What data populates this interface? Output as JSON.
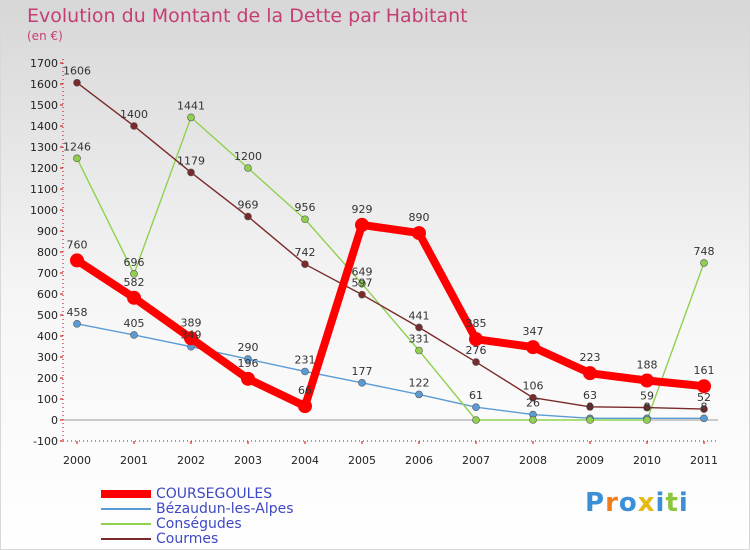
{
  "title": "Evolution du Montant de la Dette par Habitant",
  "unit": "(en €)",
  "logo": {
    "letters": [
      "P",
      "r",
      "o",
      "x",
      "i",
      "t",
      "i"
    ],
    "colors": [
      "#3a8fd6",
      "#f07d18",
      "#3a8fd6",
      "#e7b80f",
      "#3a8fd6",
      "#8cc63f",
      "#3a8fd6"
    ]
  },
  "chart_data": {
    "type": "line",
    "categories": [
      "2000",
      "2001",
      "2002",
      "2003",
      "2004",
      "2005",
      "2006",
      "2007",
      "2008",
      "2009",
      "2010",
      "2011"
    ],
    "ylim": [
      -100,
      1700
    ],
    "yticks": [
      "-100",
      "0",
      "100",
      "200",
      "300",
      "400",
      "500",
      "600",
      "700",
      "800",
      "900",
      "1000",
      "1100",
      "1200",
      "1300",
      "1400",
      "1500",
      "1600",
      "1700"
    ],
    "grid": false,
    "legend_position": "bottom-left",
    "series": [
      {
        "name": "COURSEGOULES",
        "color": "#ff0000",
        "emphasis": true,
        "values": [
          760,
          582,
          389,
          196,
          66,
          929,
          890,
          385,
          347,
          223,
          188,
          161
        ],
        "labels": [
          "760",
          "582",
          "389",
          "196",
          "66",
          "929",
          "890",
          "385",
          "347",
          "223",
          "188",
          "161"
        ]
      },
      {
        "name": "Bézaudun-les-Alpes",
        "color": "#5b9bd5",
        "emphasis": false,
        "values": [
          458,
          405,
          349,
          290,
          231,
          177,
          122,
          61,
          26,
          8,
          8,
          8
        ],
        "labels": [
          "458",
          "405",
          "349",
          "290",
          "231",
          "177",
          "122",
          "61",
          "26",
          "8",
          "8",
          "8"
        ]
      },
      {
        "name": "Conségudes",
        "color": "#8fd14f",
        "emphasis": false,
        "values": [
          1246,
          696,
          1441,
          1200,
          956,
          649,
          331,
          0,
          0,
          0,
          0,
          748
        ],
        "labels": [
          "1246",
          "696",
          "1441",
          "1200",
          "956",
          "649",
          "331",
          "",
          "",
          "",
          "",
          "748"
        ]
      },
      {
        "name": "Courmes",
        "color": "#7a2a2a",
        "emphasis": false,
        "values": [
          1606,
          1400,
          1179,
          969,
          742,
          597,
          441,
          276,
          106,
          63,
          59,
          52
        ],
        "labels": [
          "1606",
          "1400",
          "1179",
          "969",
          "742",
          "597",
          "441",
          "276",
          "106",
          "63",
          "59",
          "52"
        ]
      }
    ]
  }
}
